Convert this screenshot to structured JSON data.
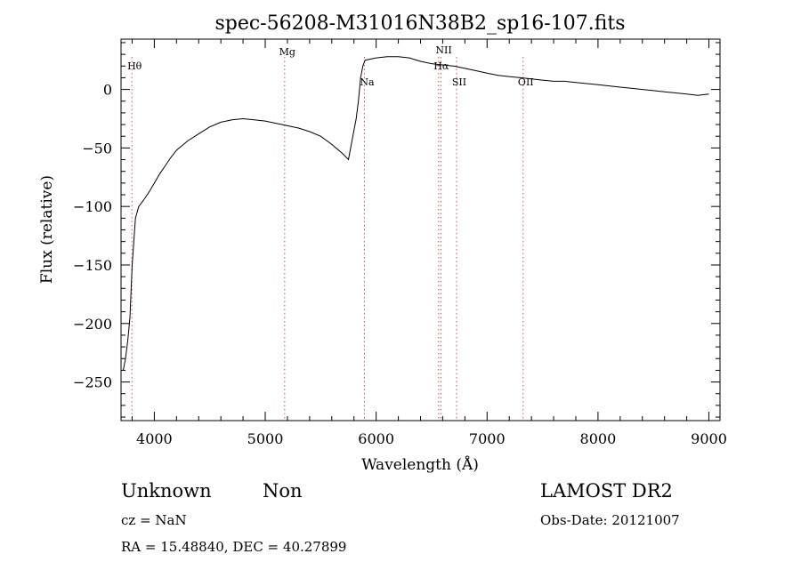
{
  "chart_data": {
    "type": "line",
    "title": "spec-56208-M31016N38B2_sp16-107.fits",
    "xlabel": "Wavelength (Å)",
    "ylabel": "Flux (relative)",
    "xlim": [
      3700,
      9100
    ],
    "ylim": [
      -283,
      43
    ],
    "xticks": [
      4000,
      5000,
      6000,
      7000,
      8000,
      9000
    ],
    "yticks": [
      0,
      -50,
      -100,
      -150,
      -200,
      -250
    ],
    "ytick_labels": [
      "0",
      "−50",
      "−100",
      "−150",
      "−200",
      "−250"
    ],
    "grid": false,
    "line_color": "#000000",
    "marker_line_color": "#d9534f",
    "series": [
      {
        "values_x": [
          3720,
          3740,
          3760,
          3780,
          3800,
          3830,
          3860,
          3900,
          3950,
          4000,
          4050,
          4100,
          4150,
          4200,
          4300,
          4400,
          4500,
          4600,
          4700,
          4800,
          4900,
          5000,
          5100,
          5200,
          5300,
          5400,
          5500,
          5600,
          5700,
          5750,
          5780,
          5800,
          5820,
          5840,
          5860,
          5880,
          5900,
          6000,
          6100,
          6200,
          6300,
          6400,
          6500,
          6600,
          6700,
          6800,
          6900,
          7000,
          7100,
          7200,
          7300,
          7400,
          7500,
          7600,
          7700,
          7800,
          7900,
          8000,
          8100,
          8200,
          8300,
          8400,
          8500,
          8600,
          8700,
          8800,
          8900,
          9000
        ],
        "values_y": [
          -240,
          -230,
          -215,
          -195,
          -150,
          -110,
          -100,
          -95,
          -88,
          -80,
          -72,
          -65,
          -58,
          -52,
          -44,
          -38,
          -32,
          -28,
          -26,
          -25,
          -26,
          -27,
          -29,
          -31,
          -33,
          -36,
          -40,
          -47,
          -55,
          -60,
          -45,
          -35,
          -25,
          -10,
          10,
          20,
          25,
          27,
          28,
          28,
          27,
          24,
          22,
          21,
          20,
          18,
          16,
          14,
          12,
          11,
          10,
          9,
          8,
          7,
          7,
          6,
          5,
          4,
          3,
          2,
          1,
          0,
          -1,
          -2,
          -3,
          -4,
          -5,
          -4
        ]
      }
    ],
    "line_markers": [
      {
        "label": "Hθ",
        "x": 3798
      },
      {
        "label": "Mg",
        "x": 5175
      },
      {
        "label": "Na",
        "x": 5894
      },
      {
        "label": "NII",
        "x": 6585
      },
      {
        "label": "Hα",
        "x": 6563
      },
      {
        "label": "SII",
        "x": 6725
      },
      {
        "label": "OII",
        "x": 7325
      }
    ]
  },
  "footer": {
    "object_class": "Unknown",
    "subclass": "Non",
    "survey": "LAMOST DR2",
    "cz": "cz = NaN",
    "obs_date": "Obs-Date: 20121007",
    "coords": "RA =  15.48840, DEC =  40.27899"
  }
}
